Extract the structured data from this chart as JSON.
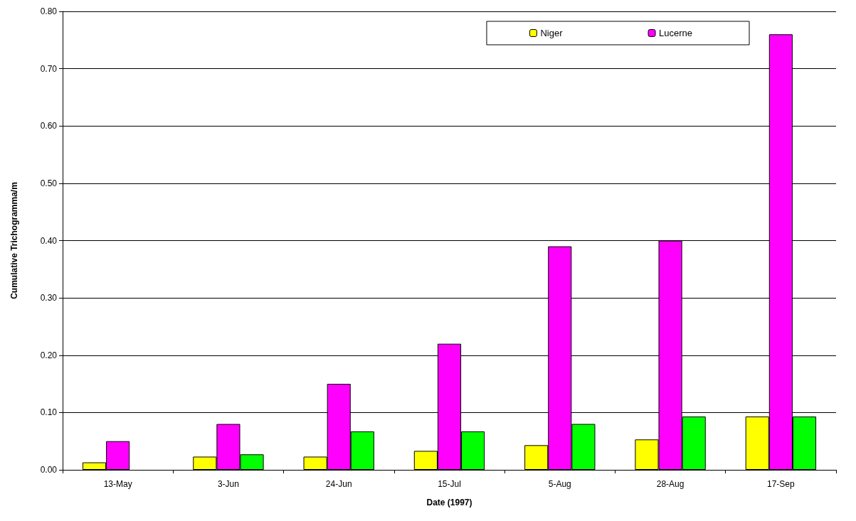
{
  "chart_data": {
    "type": "bar",
    "xlabel": "Date (1997)",
    "ylabel": "Cumulative Trichogramma/m",
    "categories": [
      "13-May",
      "3-Jun",
      "24-Jun",
      "15-Jul",
      "5-Aug",
      "28-Aug",
      "17-Sep"
    ],
    "series": [
      {
        "name": "Niger",
        "color": "#ffff00",
        "values": [
          0.013,
          0.023,
          0.023,
          0.033,
          0.043,
          0.053,
          0.093
        ]
      },
      {
        "name": "Lucerne",
        "color": "#ff00ff",
        "values": [
          0.05,
          0.08,
          0.15,
          0.22,
          0.39,
          0.4,
          0.76
        ]
      },
      {
        "color": "#00ff00",
        "values": [
          null,
          0.027,
          0.067,
          0.067,
          0.08,
          0.093,
          0.093
        ]
      }
    ],
    "ylim": [
      0,
      0.8
    ],
    "yticks": [
      {
        "value": 0,
        "label": "0.00"
      },
      {
        "value": 0.1,
        "label": "0.10"
      },
      {
        "value": 0.2,
        "label": "0.20"
      },
      {
        "value": 0.3,
        "label": "0.30"
      },
      {
        "value": 0.4,
        "label": "0.40"
      },
      {
        "value": 0.5,
        "label": "0.50"
      },
      {
        "value": 0.6,
        "label": "0.60"
      },
      {
        "value": 0.7,
        "label": "0.70"
      },
      {
        "value": 0.8,
        "label": "0.80"
      }
    ],
    "grid": "y",
    "legend": "top right"
  }
}
